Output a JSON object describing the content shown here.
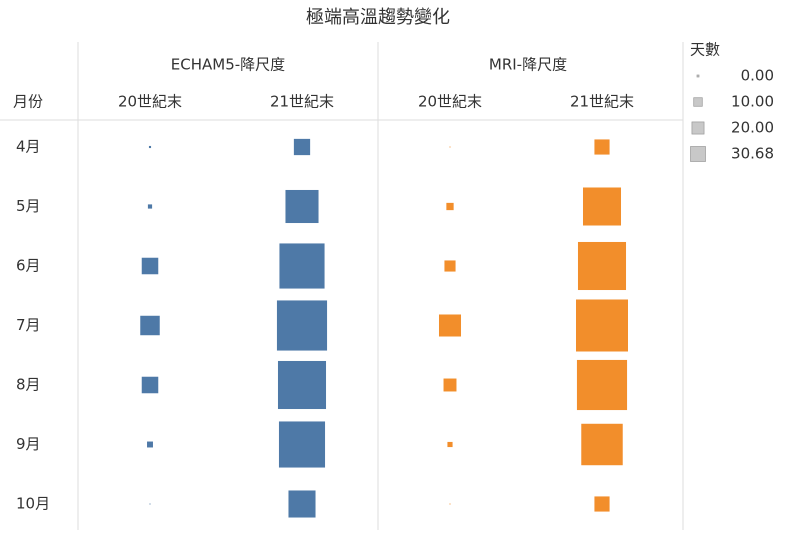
{
  "chart_data": {
    "type": "square-matrix",
    "title": "極端高溫趨勢變化",
    "row_header": "月份",
    "categories": [
      "4月",
      "5月",
      "6月",
      "7月",
      "8月",
      "9月",
      "10月"
    ],
    "groups": [
      {
        "name": "ECHAM5-降尺度",
        "color": "#4e79a7",
        "series": [
          {
            "name": "20世紀末",
            "values": [
              0.05,
              0.2,
              3.1,
              4.3,
              3.1,
              0.4,
              0.01
            ]
          },
          {
            "name": "21世紀末",
            "values": [
              3.0,
              12.4,
              23.1,
              28.5,
              26.2,
              24.1,
              8.3
            ]
          }
        ]
      },
      {
        "name": "MRI-降尺度",
        "color": "#f28e2b",
        "series": [
          {
            "name": "20世紀末",
            "values": [
              0.01,
              0.6,
              1.4,
              5.5,
              1.9,
              0.3,
              0.01
            ]
          },
          {
            "name": "21世紀末",
            "values": [
              2.6,
              16.4,
              26.2,
              30.68,
              28.5,
              19.5,
              2.6
            ]
          }
        ]
      }
    ],
    "legend": {
      "title": "天數",
      "color": "#c8c8c8",
      "items": [
        {
          "value": 0,
          "label": "0.00"
        },
        {
          "value": 10,
          "label": "10.00"
        },
        {
          "value": 20,
          "label": "20.00"
        },
        {
          "value": 30.68,
          "label": "30.68"
        }
      ]
    },
    "size_max": 30.68
  }
}
